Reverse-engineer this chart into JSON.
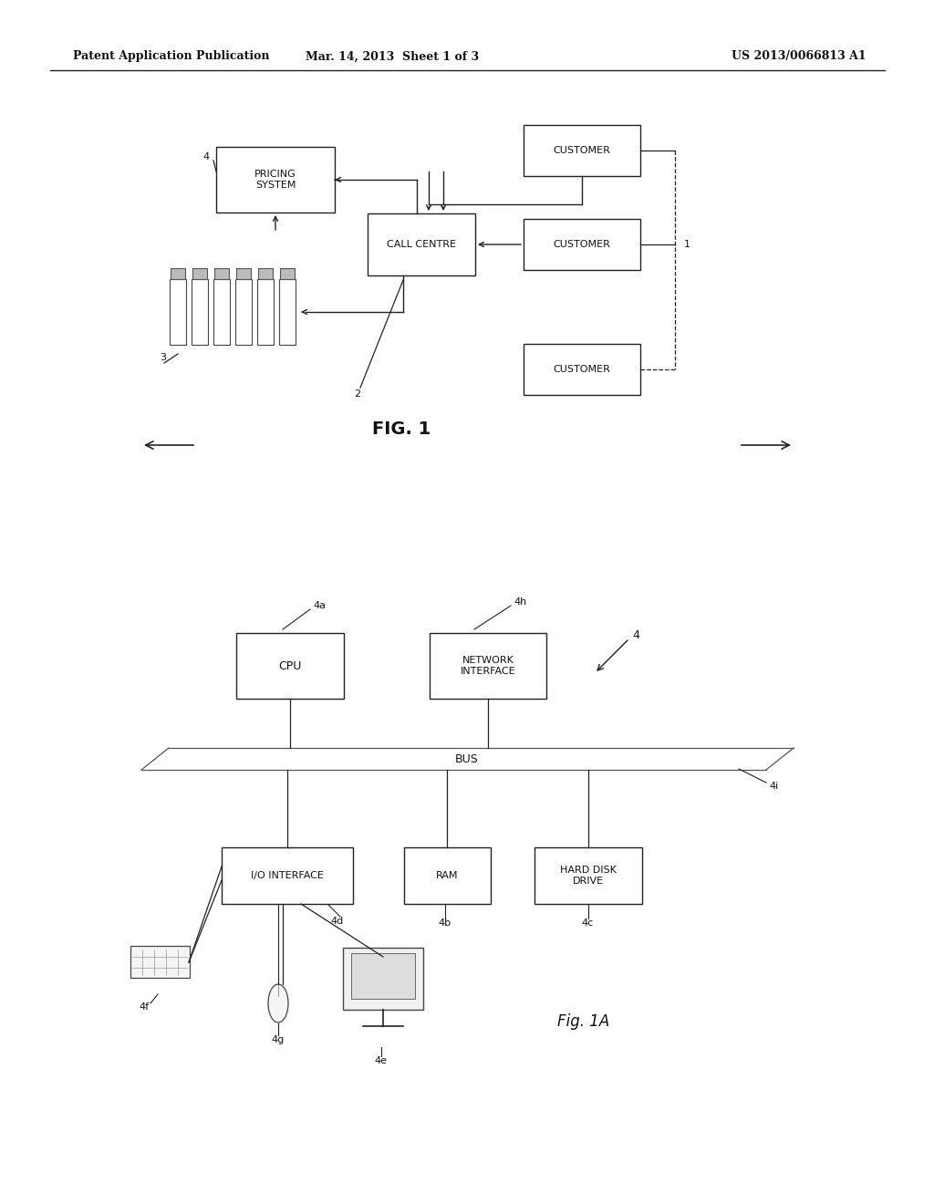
{
  "bg_color": "#ffffff",
  "header_left": "Patent Application Publication",
  "header_mid": "Mar. 14, 2013  Sheet 1 of 3",
  "header_right": "US 2013/0066813 A1"
}
